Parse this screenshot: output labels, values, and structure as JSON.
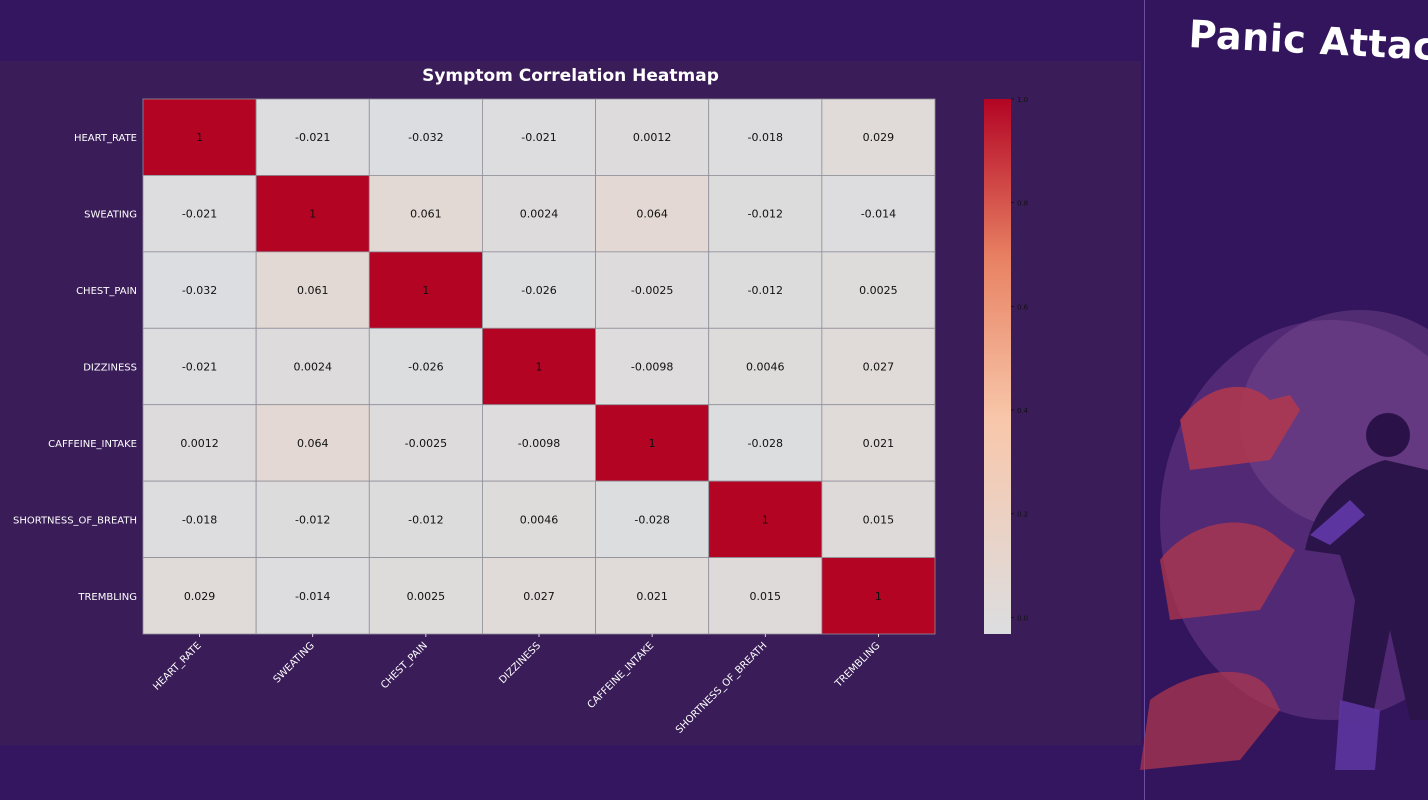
{
  "brand": {
    "title": "Panic Attack"
  },
  "colors": {
    "page_bg": "#33165f",
    "panel_bg": "#3a1d58",
    "cmap_low": "#dcdde0",
    "cmap_mid": "#f8c7aa",
    "cmap_mid2": "#e88263",
    "cmap_high": "#b30424"
  },
  "chart_data": {
    "type": "heatmap",
    "title": "Symptom Correlation Heatmap",
    "rows": [
      "HEART_RATE",
      "SWEATING",
      "CHEST_PAIN",
      "DIZZINESS",
      "CAFFEINE_INTAKE",
      "SHORTNESS_OF_BREATH",
      "TREMBLING"
    ],
    "columns": [
      "HEART_RATE",
      "SWEATING",
      "CHEST_PAIN",
      "DIZZINESS",
      "CAFFEINE_INTAKE",
      "SHORTNESS_OF_BREATH",
      "TREMBLING"
    ],
    "values": [
      [
        1,
        -0.021,
        -0.032,
        -0.021,
        0.0012,
        -0.018,
        0.029
      ],
      [
        -0.021,
        1,
        0.061,
        0.0024,
        0.064,
        -0.012,
        -0.014
      ],
      [
        -0.032,
        0.061,
        1,
        -0.026,
        -0.0025,
        -0.012,
        0.0025
      ],
      [
        -0.021,
        0.0024,
        -0.026,
        1,
        -0.0098,
        0.0046,
        0.027
      ],
      [
        0.0012,
        0.064,
        -0.0025,
        -0.0098,
        1,
        -0.028,
        0.021
      ],
      [
        -0.018,
        -0.012,
        -0.012,
        0.0046,
        -0.028,
        1,
        0.015
      ],
      [
        0.029,
        -0.014,
        0.0025,
        0.027,
        0.021,
        0.015,
        1
      ]
    ],
    "labels": [
      [
        "1",
        "-0.021",
        "-0.032",
        "-0.021",
        "0.0012",
        "-0.018",
        "0.029"
      ],
      [
        "-0.021",
        "1",
        "0.061",
        "0.0024",
        "0.064",
        "-0.012",
        "-0.014"
      ],
      [
        "-0.032",
        "0.061",
        "1",
        "-0.026",
        "-0.0025",
        "-0.012",
        "0.0025"
      ],
      [
        "-0.021",
        "0.0024",
        "-0.026",
        "1",
        "-0.0098",
        "0.0046",
        "0.027"
      ],
      [
        "0.0012",
        "0.064",
        "-0.0025",
        "-0.0098",
        "1",
        "-0.028",
        "0.021"
      ],
      [
        "-0.018",
        "-0.012",
        "-0.012",
        "0.0046",
        "-0.028",
        "1",
        "0.015"
      ],
      [
        "0.029",
        "-0.014",
        "0.0025",
        "0.027",
        "0.021",
        "0.015",
        "1"
      ]
    ],
    "colorbar": {
      "range": [
        -0.032,
        1.0
      ],
      "ticks": [
        0.0,
        0.2,
        0.4,
        0.6,
        0.8,
        1.0
      ],
      "tick_labels": [
        "0.0",
        "0.2",
        "0.4",
        "0.6",
        "0.8",
        "1.0"
      ]
    },
    "colormap": "coolwarm-like"
  }
}
